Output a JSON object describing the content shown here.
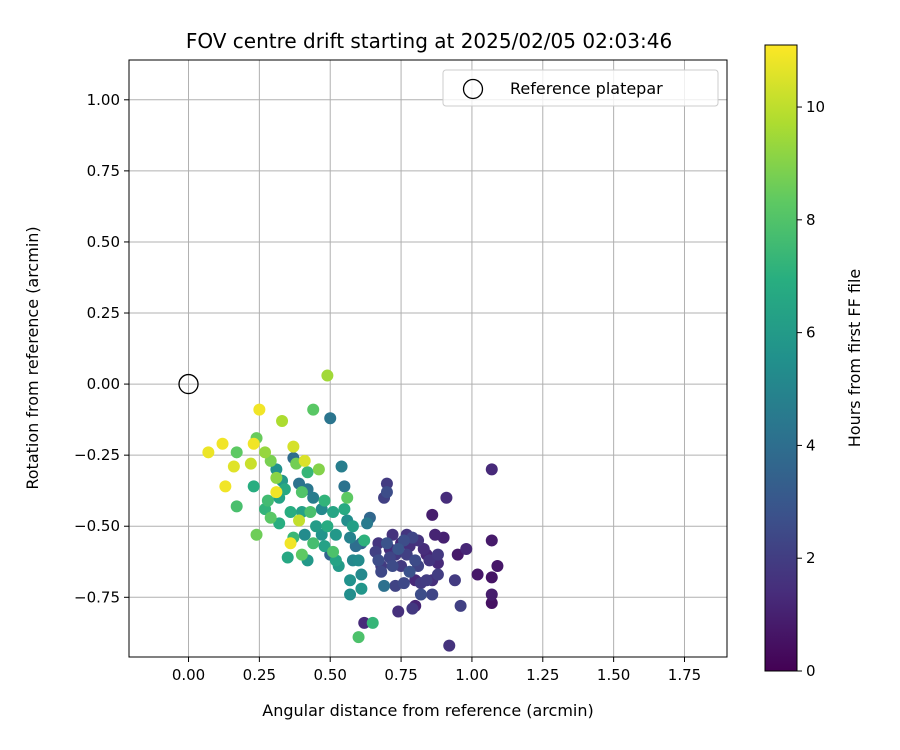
{
  "chart_data": {
    "type": "scatter",
    "title": "FOV centre drift starting at 2025/02/05 02:03:46",
    "xlabel": "Angular distance from reference (arcmin)",
    "ylabel": "Rotation from reference (arcmin)",
    "xlim": [
      -0.21,
      1.9
    ],
    "ylim": [
      -0.96,
      1.14
    ],
    "xticks": [
      0.0,
      0.25,
      0.5,
      0.75,
      1.0,
      1.25,
      1.5,
      1.75
    ],
    "xtick_labels": [
      "0.00",
      "0.25",
      "0.50",
      "0.75",
      "1.00",
      "1.25",
      "1.50",
      "1.75"
    ],
    "yticks": [
      1.0,
      0.75,
      0.5,
      0.25,
      0.0,
      -0.25,
      -0.5,
      -0.75
    ],
    "ytick_labels": [
      "1.00",
      "0.75",
      "0.50",
      "0.25",
      "0.00",
      "−0.25",
      "−0.50",
      "−0.75"
    ],
    "grid": true,
    "legend": {
      "placement": "top-right",
      "entries": [
        "Reference platepar"
      ]
    },
    "reference_point": {
      "x": 0.0,
      "y": 0.0
    },
    "colorbar": {
      "label": "Hours from first FF file",
      "colormap": "viridis",
      "range": [
        0,
        11.1
      ],
      "ticks": [
        0,
        2,
        4,
        6,
        8,
        10
      ],
      "tick_labels": [
        "0",
        "2",
        "4",
        "6",
        "8",
        "10"
      ]
    },
    "points": [
      {
        "x": 0.07,
        "y": -0.24,
        "h": 10.8
      },
      {
        "x": 0.12,
        "y": -0.21,
        "h": 10.9
      },
      {
        "x": 0.13,
        "y": -0.36,
        "h": 10.9
      },
      {
        "x": 0.16,
        "y": -0.29,
        "h": 10.6
      },
      {
        "x": 0.17,
        "y": -0.24,
        "h": 8.3
      },
      {
        "x": 0.17,
        "y": -0.43,
        "h": 7.8
      },
      {
        "x": 0.22,
        "y": -0.28,
        "h": 10.2
      },
      {
        "x": 0.23,
        "y": -0.21,
        "h": 10.9
      },
      {
        "x": 0.24,
        "y": -0.19,
        "h": 8.5
      },
      {
        "x": 0.23,
        "y": -0.36,
        "h": 6.9
      },
      {
        "x": 0.24,
        "y": -0.53,
        "h": 8.6
      },
      {
        "x": 0.25,
        "y": -0.09,
        "h": 10.9
      },
      {
        "x": 0.27,
        "y": -0.24,
        "h": 9.3
      },
      {
        "x": 0.27,
        "y": -0.44,
        "h": 7.2
      },
      {
        "x": 0.28,
        "y": -0.41,
        "h": 7.6
      },
      {
        "x": 0.29,
        "y": -0.27,
        "h": 8.8
      },
      {
        "x": 0.29,
        "y": -0.47,
        "h": 8.2
      },
      {
        "x": 0.31,
        "y": -0.3,
        "h": 5.6
      },
      {
        "x": 0.31,
        "y": -0.33,
        "h": 9.1
      },
      {
        "x": 0.31,
        "y": -0.38,
        "h": 10.9
      },
      {
        "x": 0.32,
        "y": -0.4,
        "h": 6.4
      },
      {
        "x": 0.32,
        "y": -0.49,
        "h": 6.9
      },
      {
        "x": 0.33,
        "y": -0.34,
        "h": 5.9
      },
      {
        "x": 0.33,
        "y": -0.13,
        "h": 9.7
      },
      {
        "x": 0.34,
        "y": -0.37,
        "h": 6.7
      },
      {
        "x": 0.35,
        "y": -0.61,
        "h": 6.6
      },
      {
        "x": 0.36,
        "y": -0.56,
        "h": 10.9
      },
      {
        "x": 0.36,
        "y": -0.45,
        "h": 6.9
      },
      {
        "x": 0.37,
        "y": -0.22,
        "h": 10.4
      },
      {
        "x": 0.37,
        "y": -0.54,
        "h": 7.4
      },
      {
        "x": 0.37,
        "y": -0.26,
        "h": 3.9
      },
      {
        "x": 0.38,
        "y": -0.28,
        "h": 8.7
      },
      {
        "x": 0.39,
        "y": -0.48,
        "h": 10.1
      },
      {
        "x": 0.39,
        "y": -0.35,
        "h": 4.2
      },
      {
        "x": 0.4,
        "y": -0.38,
        "h": 8.0
      },
      {
        "x": 0.4,
        "y": -0.45,
        "h": 6.3
      },
      {
        "x": 0.4,
        "y": -0.6,
        "h": 8.3
      },
      {
        "x": 0.41,
        "y": -0.27,
        "h": 10.5
      },
      {
        "x": 0.41,
        "y": -0.53,
        "h": 5.3
      },
      {
        "x": 0.42,
        "y": -0.37,
        "h": 4.4
      },
      {
        "x": 0.42,
        "y": -0.62,
        "h": 5.9
      },
      {
        "x": 0.42,
        "y": -0.31,
        "h": 7.3
      },
      {
        "x": 0.43,
        "y": -0.45,
        "h": 7.8
      },
      {
        "x": 0.44,
        "y": -0.09,
        "h": 8.2
      },
      {
        "x": 0.44,
        "y": -0.4,
        "h": 4.6
      },
      {
        "x": 0.44,
        "y": -0.56,
        "h": 7.7
      },
      {
        "x": 0.45,
        "y": -0.5,
        "h": 6.1
      },
      {
        "x": 0.46,
        "y": -0.3,
        "h": 9.0
      },
      {
        "x": 0.47,
        "y": -0.53,
        "h": 5.7
      },
      {
        "x": 0.47,
        "y": -0.44,
        "h": 5.2
      },
      {
        "x": 0.48,
        "y": -0.57,
        "h": 6.3
      },
      {
        "x": 0.48,
        "y": -0.41,
        "h": 7.2
      },
      {
        "x": 0.49,
        "y": 0.03,
        "h": 9.5
      },
      {
        "x": 0.49,
        "y": -0.5,
        "h": 6.8
      },
      {
        "x": 0.5,
        "y": -0.6,
        "h": 3.6
      },
      {
        "x": 0.5,
        "y": -0.12,
        "h": 4.3
      },
      {
        "x": 0.51,
        "y": -0.45,
        "h": 6.5
      },
      {
        "x": 0.51,
        "y": -0.59,
        "h": 7.9
      },
      {
        "x": 0.52,
        "y": -0.53,
        "h": 5.9
      },
      {
        "x": 0.52,
        "y": -0.62,
        "h": 6.4
      },
      {
        "x": 0.53,
        "y": -0.64,
        "h": 6.0
      },
      {
        "x": 0.54,
        "y": -0.29,
        "h": 4.7
      },
      {
        "x": 0.55,
        "y": -0.44,
        "h": 6.7
      },
      {
        "x": 0.55,
        "y": -0.36,
        "h": 4.2
      },
      {
        "x": 0.56,
        "y": -0.4,
        "h": 8.3
      },
      {
        "x": 0.56,
        "y": -0.48,
        "h": 5.4
      },
      {
        "x": 0.57,
        "y": -0.54,
        "h": 4.9
      },
      {
        "x": 0.57,
        "y": -0.69,
        "h": 5.6
      },
      {
        "x": 0.57,
        "y": -0.74,
        "h": 5.4
      },
      {
        "x": 0.58,
        "y": -0.5,
        "h": 6.2
      },
      {
        "x": 0.58,
        "y": -0.62,
        "h": 5.1
      },
      {
        "x": 0.59,
        "y": -0.57,
        "h": 4.0
      },
      {
        "x": 0.6,
        "y": -0.62,
        "h": 5.3
      },
      {
        "x": 0.6,
        "y": -0.89,
        "h": 7.9
      },
      {
        "x": 0.61,
        "y": -0.56,
        "h": 3.4
      },
      {
        "x": 0.61,
        "y": -0.67,
        "h": 5.2
      },
      {
        "x": 0.61,
        "y": -0.72,
        "h": 5.8
      },
      {
        "x": 0.62,
        "y": -0.84,
        "h": 1.3
      },
      {
        "x": 0.62,
        "y": -0.55,
        "h": 7.1
      },
      {
        "x": 0.63,
        "y": -0.49,
        "h": 4.5
      },
      {
        "x": 0.64,
        "y": -0.47,
        "h": 3.7
      },
      {
        "x": 0.65,
        "y": -0.84,
        "h": 7.3
      },
      {
        "x": 0.66,
        "y": -0.59,
        "h": 2.1
      },
      {
        "x": 0.67,
        "y": -0.56,
        "h": 1.7
      },
      {
        "x": 0.67,
        "y": -0.62,
        "h": 2.6
      },
      {
        "x": 0.68,
        "y": -0.64,
        "h": 1.9
      },
      {
        "x": 0.68,
        "y": -0.66,
        "h": 2.4
      },
      {
        "x": 0.69,
        "y": -0.4,
        "h": 2.1
      },
      {
        "x": 0.69,
        "y": -0.71,
        "h": 4.1
      },
      {
        "x": 0.7,
        "y": -0.56,
        "h": 2.8
      },
      {
        "x": 0.7,
        "y": -0.38,
        "h": 2.6
      },
      {
        "x": 0.7,
        "y": -0.35,
        "h": 1.9
      },
      {
        "x": 0.71,
        "y": -0.58,
        "h": 1.4
      },
      {
        "x": 0.71,
        "y": -0.61,
        "h": 2.3
      },
      {
        "x": 0.72,
        "y": -0.53,
        "h": 1.6
      },
      {
        "x": 0.72,
        "y": -0.64,
        "h": 2.5
      },
      {
        "x": 0.73,
        "y": -0.6,
        "h": 1.8
      },
      {
        "x": 0.73,
        "y": -0.71,
        "h": 2.2
      },
      {
        "x": 0.74,
        "y": -0.58,
        "h": 2.9
      },
      {
        "x": 0.74,
        "y": -0.8,
        "h": 1.5
      },
      {
        "x": 0.75,
        "y": -0.56,
        "h": 1.2
      },
      {
        "x": 0.75,
        "y": -0.64,
        "h": 1.9
      },
      {
        "x": 0.76,
        "y": -0.55,
        "h": 2.6
      },
      {
        "x": 0.76,
        "y": -0.7,
        "h": 2.4
      },
      {
        "x": 0.77,
        "y": -0.53,
        "h": 1.7
      },
      {
        "x": 0.77,
        "y": -0.6,
        "h": 2.1
      },
      {
        "x": 0.78,
        "y": -0.57,
        "h": 1.5
      },
      {
        "x": 0.78,
        "y": -0.66,
        "h": 2.8
      },
      {
        "x": 0.79,
        "y": -0.54,
        "h": 2.3
      },
      {
        "x": 0.79,
        "y": -0.79,
        "h": 1.8
      },
      {
        "x": 0.8,
        "y": -0.69,
        "h": 1.3
      },
      {
        "x": 0.8,
        "y": -0.62,
        "h": 2.5
      },
      {
        "x": 0.8,
        "y": -0.78,
        "h": 1.1
      },
      {
        "x": 0.81,
        "y": -0.55,
        "h": 1.6
      },
      {
        "x": 0.81,
        "y": -0.64,
        "h": 2.2
      },
      {
        "x": 0.82,
        "y": -0.7,
        "h": 1.9
      },
      {
        "x": 0.82,
        "y": -0.74,
        "h": 2.6
      },
      {
        "x": 0.83,
        "y": -0.58,
        "h": 1.4
      },
      {
        "x": 0.84,
        "y": -0.69,
        "h": 2.0
      },
      {
        "x": 0.84,
        "y": -0.6,
        "h": 1.2
      },
      {
        "x": 0.85,
        "y": -0.62,
        "h": 1.7
      },
      {
        "x": 0.86,
        "y": -0.74,
        "h": 2.3
      },
      {
        "x": 0.86,
        "y": -0.46,
        "h": 0.9
      },
      {
        "x": 0.86,
        "y": -0.69,
        "h": 1.5
      },
      {
        "x": 0.87,
        "y": -0.53,
        "h": 1.1
      },
      {
        "x": 0.88,
        "y": -0.6,
        "h": 1.8
      },
      {
        "x": 0.88,
        "y": -0.63,
        "h": 1.3
      },
      {
        "x": 0.88,
        "y": -0.67,
        "h": 2.0
      },
      {
        "x": 0.9,
        "y": -0.54,
        "h": 1.0
      },
      {
        "x": 0.91,
        "y": -0.4,
        "h": 1.4
      },
      {
        "x": 0.92,
        "y": -0.92,
        "h": 1.6
      },
      {
        "x": 0.94,
        "y": -0.69,
        "h": 1.9
      },
      {
        "x": 0.95,
        "y": -0.6,
        "h": 0.8
      },
      {
        "x": 0.96,
        "y": -0.78,
        "h": 2.1
      },
      {
        "x": 0.98,
        "y": -0.58,
        "h": 1.2
      },
      {
        "x": 1.02,
        "y": -0.67,
        "h": 0.7
      },
      {
        "x": 1.07,
        "y": -0.3,
        "h": 1.3
      },
      {
        "x": 1.07,
        "y": -0.55,
        "h": 0.8
      },
      {
        "x": 1.07,
        "y": -0.68,
        "h": 0.6
      },
      {
        "x": 1.07,
        "y": -0.74,
        "h": 0.9
      },
      {
        "x": 1.07,
        "y": -0.77,
        "h": 0.5
      },
      {
        "x": 1.09,
        "y": -0.64,
        "h": 0.7
      }
    ]
  }
}
